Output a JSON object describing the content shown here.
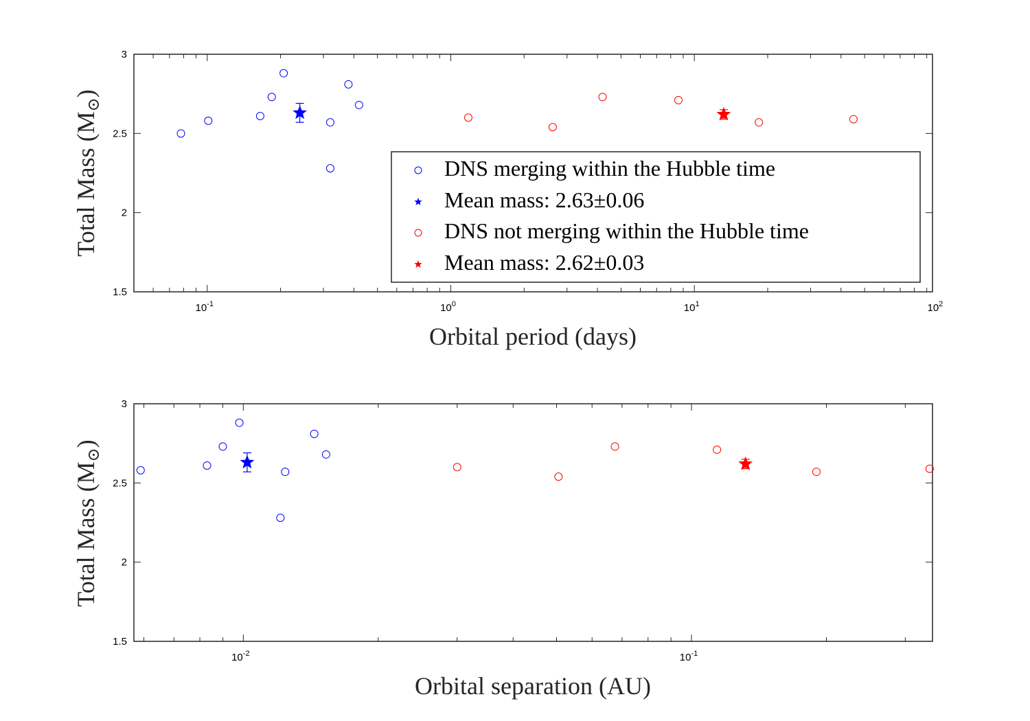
{
  "chart_data": [
    {
      "type": "scatter",
      "xscale": "log",
      "xlabel": "Orbital period (days)",
      "ylabel": "Total Mass (M",
      "ylabel_sub": "⊙",
      "ylabel_close": ")",
      "xlim": [
        0.05,
        95
      ],
      "ylim": [
        1.5,
        3
      ],
      "xticks": [
        {
          "value": 0.1,
          "base": "10",
          "exp": "-1"
        },
        {
          "value": 1,
          "base": "10",
          "exp": "0"
        },
        {
          "value": 10,
          "base": "10",
          "exp": "1"
        },
        {
          "value": 100,
          "base": "10",
          "exp": "2"
        }
      ],
      "yticks": [
        1.5,
        2,
        2.5,
        3
      ],
      "series": [
        {
          "name": "DNS merging within the Hubble time",
          "marker": "circle",
          "color": "#0000ff",
          "points": [
            [
              0.078,
              2.5
            ],
            [
              0.101,
              2.58
            ],
            [
              0.165,
              2.61
            ],
            [
              0.184,
              2.73
            ],
            [
              0.206,
              2.88
            ],
            [
              0.32,
              2.57
            ],
            [
              0.32,
              2.28
            ],
            [
              0.38,
              2.81
            ],
            [
              0.42,
              2.68
            ]
          ]
        },
        {
          "name": "DNS not merging within the Hubble time",
          "marker": "circle",
          "color": "#ff0000",
          "points": [
            [
              1.18,
              2.6
            ],
            [
              2.62,
              2.54
            ],
            [
              4.2,
              2.73
            ],
            [
              8.6,
              2.71
            ],
            [
              18.4,
              2.57
            ],
            [
              45,
              2.59
            ]
          ]
        }
      ],
      "means": [
        {
          "name": "Mean mass: 2.63±0.06",
          "color": "#0000ff",
          "x": 0.24,
          "y": 2.63,
          "err": 0.06
        },
        {
          "name": "Mean mass: 2.62±0.03",
          "color": "#ff0000",
          "x": 13.2,
          "y": 2.62,
          "err": 0.03
        }
      ],
      "legend": {
        "placement": "lower-right",
        "entries": [
          {
            "marker": "circle",
            "color": "#0000ff",
            "label": "DNS merging within the Hubble time"
          },
          {
            "marker": "star",
            "color": "#0000ff",
            "label": "Mean mass: 2.63±0.06"
          },
          {
            "marker": "circle",
            "color": "#ff0000",
            "label": "DNS not merging within the Hubble time"
          },
          {
            "marker": "star",
            "color": "#ff0000",
            "label": "Mean mass: 2.62±0.03"
          }
        ]
      }
    },
    {
      "type": "scatter",
      "xscale": "log",
      "xlabel": "Orbital separation (AU)",
      "ylabel": "Total Mass (M",
      "ylabel_sub": "⊙",
      "ylabel_close": ")",
      "xlim": [
        0.0057,
        0.345
      ],
      "ylim": [
        1.5,
        3
      ],
      "xticks": [
        {
          "value": 0.01,
          "base": "10",
          "exp": "-2"
        },
        {
          "value": 0.1,
          "base": "10",
          "exp": "-1"
        }
      ],
      "yticks": [
        1.5,
        2,
        2.5,
        3
      ],
      "series": [
        {
          "name": "DNS merging within the Hubble time",
          "marker": "circle",
          "color": "#0000ff",
          "points": [
            [
              0.0059,
              2.58
            ],
            [
              0.0083,
              2.61
            ],
            [
              0.009,
              2.73
            ],
            [
              0.0098,
              2.88
            ],
            [
              0.0124,
              2.57
            ],
            [
              0.0121,
              2.28
            ],
            [
              0.0144,
              2.81
            ],
            [
              0.0153,
              2.68
            ]
          ]
        },
        {
          "name": "DNS not merging within the Hubble time",
          "marker": "circle",
          "color": "#ff0000",
          "points": [
            [
              0.03,
              2.6
            ],
            [
              0.0505,
              2.54
            ],
            [
              0.0675,
              2.73
            ],
            [
              0.114,
              2.71
            ],
            [
              0.19,
              2.57
            ],
            [
              0.34,
              2.59
            ]
          ]
        }
      ],
      "means": [
        {
          "name": "Mean mass: 2.63±0.06",
          "color": "#0000ff",
          "x": 0.0102,
          "y": 2.63,
          "err": 0.06
        },
        {
          "name": "Mean mass: 2.62±0.03",
          "color": "#ff0000",
          "x": 0.132,
          "y": 2.62,
          "err": 0.03
        }
      ]
    }
  ]
}
